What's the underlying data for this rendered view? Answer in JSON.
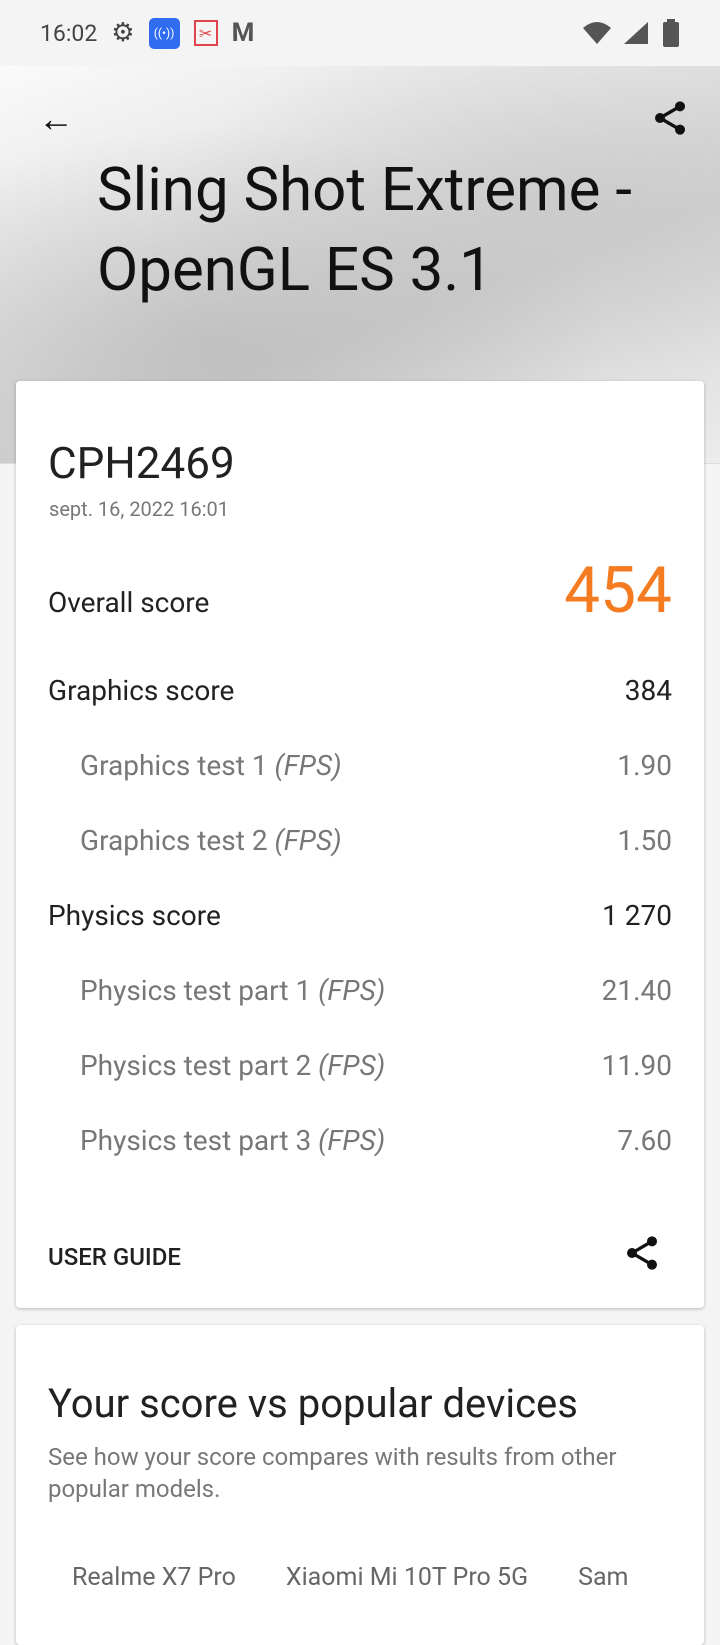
{
  "status_bar": {
    "time": "16:02",
    "icons": [
      "gear-icon",
      "hotspot-icon",
      "screenshot-icon",
      "gmail-icon",
      "wifi-icon",
      "signal-icon",
      "battery-icon"
    ]
  },
  "header": {
    "title": "Sling Shot Extreme - OpenGL ES 3.1"
  },
  "result": {
    "device": "CPH2469",
    "date": "sept. 16, 2022 16:01",
    "overall_label": "Overall score",
    "overall_value": "454",
    "rows": [
      {
        "label": "Graphics score",
        "unit": "",
        "value": "384",
        "sub": false
      },
      {
        "label": "Graphics test 1 ",
        "unit": "(FPS)",
        "value": "1.90",
        "sub": true
      },
      {
        "label": "Graphics test 2 ",
        "unit": "(FPS)",
        "value": "1.50",
        "sub": true
      },
      {
        "label": "Physics score",
        "unit": "",
        "value": "1 270",
        "sub": false
      },
      {
        "label": "Physics test part 1 ",
        "unit": "(FPS)",
        "value": "21.40",
        "sub": true
      },
      {
        "label": "Physics test part 2 ",
        "unit": "(FPS)",
        "value": "11.90",
        "sub": true
      },
      {
        "label": "Physics test part 3 ",
        "unit": "(FPS)",
        "value": "7.60",
        "sub": true
      }
    ],
    "user_guide": "USER GUIDE"
  },
  "compare": {
    "title": "Your score vs popular devices",
    "description": "See how your score compares with results from other popular models.",
    "tabs": [
      "Realme X7 Pro",
      "Xiaomi Mi 10T Pro 5G",
      "Sam"
    ]
  },
  "colors": {
    "accent": "#f47b20",
    "hotspot": "#2f6cf0",
    "screenshot": "#e0434b"
  }
}
